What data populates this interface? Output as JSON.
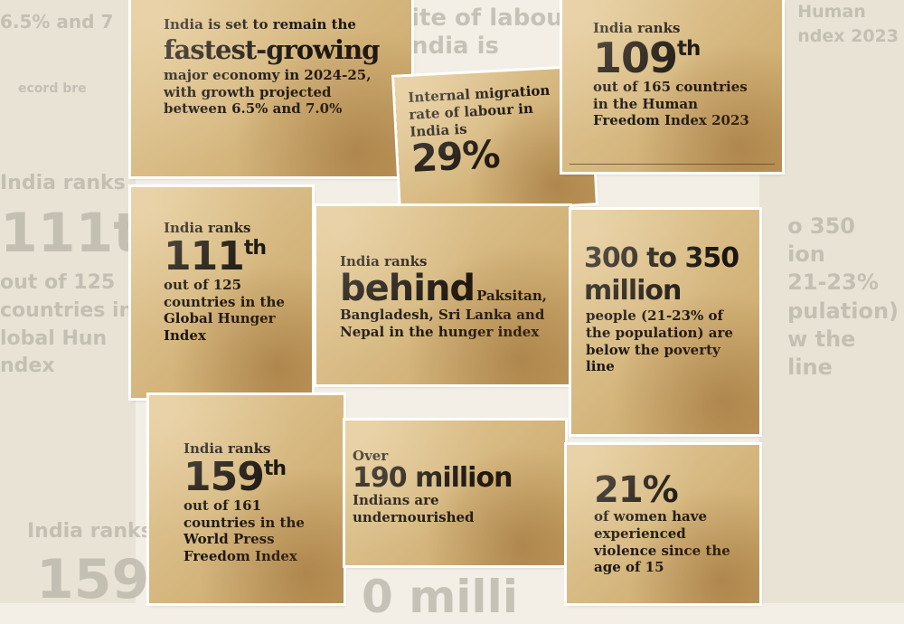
{
  "background": {
    "fragments": [
      "6.5% and 7",
      "ecord bre",
      "India ranks",
      "111th",
      "out of 125\ncountries in\nlobal Hun\nndex",
      "India ranks",
      "159",
      "ite of labour\nndia is",
      "Human\nndex 2023",
      "o 350\nion\n21-23%\npulation)\nw the\nline",
      "0 milli"
    ]
  },
  "clippings": [
    {
      "intro": "India is set to remain the",
      "headline": "fastest-growing",
      "body": "major economy in 2024-25, with growth projected between 6.5% and 7.0%"
    },
    {
      "intro": "Internal migration rate of labour in India is",
      "headline": "29%"
    },
    {
      "intro": "India ranks",
      "headline": "109",
      "suffix": "th",
      "body": "out of 165 countries in the Human Freedom Index 2023"
    },
    {
      "intro": "India ranks",
      "headline": "111",
      "suffix": "th",
      "body": "out of 125 countries in the Global Hunger Index"
    },
    {
      "intro": "India ranks",
      "headline": "behind",
      "body": "Paksitan, Bangladesh, Sri Lanka and Nepal in the hunger index"
    },
    {
      "headline": "300 to 350 million",
      "body": "people (21-23% of the population) are below the poverty line"
    },
    {
      "intro": "India ranks",
      "headline": "159",
      "suffix": "th",
      "body": "out of 161 countries in the World Press Freedom Index"
    },
    {
      "intro": "Over",
      "headline": "190 million",
      "body": "Indians are undernourished"
    },
    {
      "headline": "21%",
      "body": "of women have experienced violence since the age of 15"
    }
  ]
}
